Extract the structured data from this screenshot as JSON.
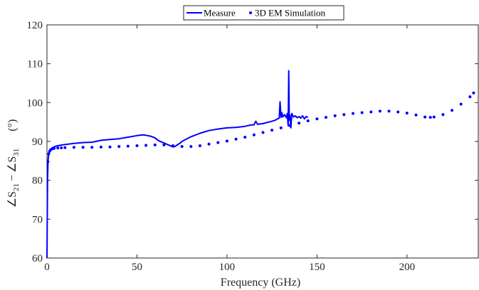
{
  "chart_data": {
    "type": "line",
    "title": "",
    "xlabel": "Frequency (GHz)",
    "ylabel": {
      "angle_symbol": "∠",
      "s_letter": "S",
      "sub_a": "21",
      "minus": "−",
      "sub_b": "31",
      "unit": "(°)"
    },
    "xlim": [
      0,
      240
    ],
    "ylim": [
      60,
      120
    ],
    "x_ticks": [
      0,
      50,
      100,
      150,
      200
    ],
    "y_ticks": [
      60,
      70,
      80,
      90,
      100,
      110,
      120
    ],
    "grid": false,
    "legend_position": "top-center",
    "series": [
      {
        "name": "Measure",
        "style": "solid-line",
        "color": "#0000ff",
        "x": [
          0,
          0.3,
          0.6,
          1,
          1.5,
          2,
          3,
          4,
          5,
          7,
          10,
          15,
          20,
          25,
          28,
          30,
          35,
          40,
          45,
          50,
          53,
          55,
          58,
          60,
          62,
          65,
          67,
          69,
          70,
          71,
          72,
          74,
          75,
          77,
          80,
          85,
          90,
          95,
          100,
          105,
          110,
          113,
          115,
          116,
          117,
          120,
          125,
          127,
          128,
          129,
          129.5,
          130,
          130.5,
          131,
          132,
          133,
          133.5,
          134,
          134.3,
          134.6,
          135,
          135.5,
          136,
          137,
          138,
          139,
          140,
          141,
          142,
          143,
          144,
          145
        ],
        "values": [
          60,
          80,
          85,
          87,
          87.6,
          88,
          88.4,
          88.6,
          88.8,
          89,
          89.2,
          89.5,
          89.7,
          89.8,
          90.1,
          90.3,
          90.5,
          90.7,
          91.1,
          91.5,
          91.7,
          91.6,
          91.3,
          90.9,
          90.2,
          89.6,
          89.2,
          88.8,
          88.6,
          88.7,
          89,
          89.6,
          90,
          90.5,
          91.2,
          92.1,
          92.8,
          93.2,
          93.5,
          93.6,
          93.9,
          94.2,
          94.3,
          95.2,
          94.4,
          94.6,
          95.2,
          95.5,
          95.8,
          96,
          100.2,
          96.2,
          97.4,
          96.3,
          96.9,
          96.1,
          97.2,
          94,
          108.2,
          95.5,
          96.8,
          93.5,
          97.2,
          96.3,
          96.6,
          96.1,
          96.4,
          96,
          96.6,
          95.8,
          96.4,
          96.2
        ]
      },
      {
        "name": "3D EM Simulation",
        "style": "dots",
        "color": "#0000ff",
        "x": [
          0.5,
          1,
          1.5,
          2,
          3,
          4,
          6,
          8,
          10,
          15,
          20,
          25,
          30,
          35,
          40,
          45,
          50,
          55,
          60,
          65,
          70,
          75,
          80,
          85,
          90,
          95,
          100,
          105,
          110,
          115,
          120,
          125,
          130,
          135,
          140,
          145,
          150,
          155,
          160,
          165,
          170,
          175,
          180,
          185,
          190,
          195,
          200,
          205,
          210,
          213,
          215,
          220,
          225,
          230,
          235,
          237
        ],
        "values": [
          84.8,
          86.8,
          87.5,
          87.9,
          88.1,
          88.2,
          88.3,
          88.35,
          88.4,
          88.5,
          88.5,
          88.5,
          88.55,
          88.6,
          88.7,
          88.8,
          88.9,
          89.0,
          89.1,
          89.1,
          88.9,
          88.7,
          88.7,
          88.9,
          89.3,
          89.7,
          90.1,
          90.6,
          91.1,
          91.7,
          92.3,
          92.9,
          93.5,
          94.1,
          94.7,
          95.3,
          95.8,
          96.2,
          96.6,
          96.9,
          97.2,
          97.4,
          97.6,
          97.8,
          97.8,
          97.6,
          97.3,
          96.8,
          96.3,
          96.2,
          96.3,
          96.9,
          98.0,
          99.6,
          101.5,
          102.5
        ]
      }
    ]
  }
}
